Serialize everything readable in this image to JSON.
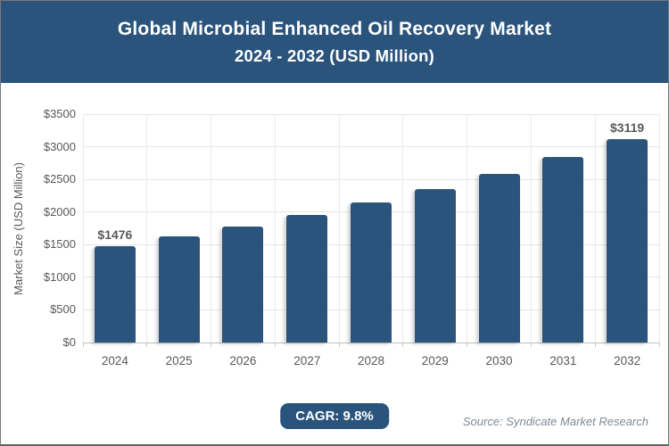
{
  "header": {
    "title_line1": "Global Microbial Enhanced Oil Recovery Market",
    "title_line2": "2024 - 2032 (USD Million)"
  },
  "chart_data": {
    "type": "bar",
    "title": "Global Microbial Enhanced Oil Recovery Market 2024 - 2032 (USD Million)",
    "categories": [
      "2024",
      "2025",
      "2026",
      "2027",
      "2028",
      "2029",
      "2030",
      "2031",
      "2032"
    ],
    "values": [
      1476,
      1621,
      1779,
      1954,
      2145,
      2356,
      2586,
      2840,
      3119
    ],
    "point_labels": [
      "$1476",
      "",
      "",
      "",
      "",
      "",
      "",
      "",
      "$3119"
    ],
    "xlabel": "",
    "ylabel": "Market Size (USD Million)",
    "ylim": [
      0,
      3500
    ],
    "ytick_values": [
      0,
      500,
      1000,
      1500,
      2000,
      2500,
      3000,
      3500
    ],
    "ytick_labels": [
      "$0",
      "$500",
      "$1000",
      "$1500",
      "$2000",
      "$2500",
      "$3000",
      "$3500"
    ],
    "grid": true,
    "legend": "none",
    "bar_color": "#2a547c"
  },
  "footer": {
    "cagr_label": "CAGR: 9.8%",
    "source": "Source: Syndicate Market Research"
  },
  "colors": {
    "header_bg": "#2a547c",
    "bar_fill": "#2a547c",
    "badge_bg": "#2a547c",
    "grid_line": "#e6e6e6",
    "axis_line": "#bdbdbd",
    "axis_text": "#595959",
    "source_text": "#7d8a96",
    "title_text": "#ffffff"
  }
}
